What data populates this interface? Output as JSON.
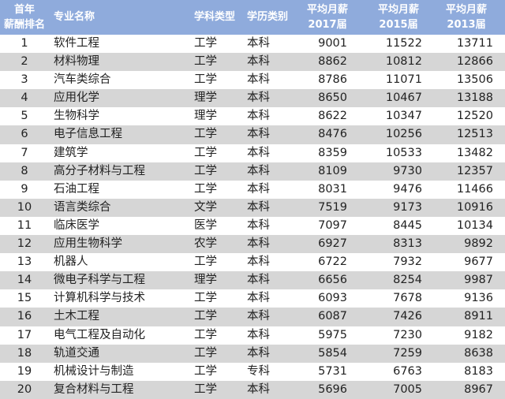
{
  "header": {
    "rank": [
      "首年",
      "薪酬排名"
    ],
    "name": "专业名称",
    "type": "学科类型",
    "edu": "学历类别",
    "y2017": [
      "平均月薪",
      "2017届"
    ],
    "y2015": [
      "平均月薪",
      "2015届"
    ],
    "y2013": [
      "平均月薪",
      "2013届"
    ]
  },
  "colors": {
    "header_bg": "#8fabdc",
    "stripe": "#d6d6d6"
  },
  "rows": [
    [
      "1",
      "软件工程",
      "工学",
      "本科",
      "9001",
      "11522",
      "13711"
    ],
    [
      "2",
      "材料物理",
      "工学",
      "本科",
      "8862",
      "10812",
      "12866"
    ],
    [
      "3",
      "汽车类综合",
      "工学",
      "本科",
      "8786",
      "11071",
      "13506"
    ],
    [
      "4",
      "应用化学",
      "理学",
      "本科",
      "8650",
      "10467",
      "13188"
    ],
    [
      "5",
      "生物科学",
      "理学",
      "本科",
      "8622",
      "10347",
      "12520"
    ],
    [
      "6",
      "电子信息工程",
      "工学",
      "本科",
      "8476",
      "10256",
      "12513"
    ],
    [
      "7",
      "建筑学",
      "工学",
      "本科",
      "8359",
      "10533",
      "13482"
    ],
    [
      "8",
      "高分子材料与工程",
      "工学",
      "本科",
      "8109",
      "9730",
      "12357"
    ],
    [
      "9",
      "石油工程",
      "工学",
      "本科",
      "8031",
      "9476",
      "11466"
    ],
    [
      "10",
      "语言类综合",
      "文学",
      "本科",
      "7519",
      "9173",
      "10916"
    ],
    [
      "11",
      "临床医学",
      "医学",
      "本科",
      "7097",
      "8445",
      "10134"
    ],
    [
      "12",
      "应用生物科学",
      "农学",
      "本科",
      "6927",
      "8313",
      "9892"
    ],
    [
      "13",
      "机器人",
      "工学",
      "本科",
      "6722",
      "7932",
      "9677"
    ],
    [
      "14",
      "微电子科学与工程",
      "理学",
      "本科",
      "6656",
      "8254",
      "9987"
    ],
    [
      "15",
      "计算机科学与技术",
      "工学",
      "本科",
      "6093",
      "7678",
      "9136"
    ],
    [
      "16",
      "土木工程",
      "工学",
      "本科",
      "6087",
      "7426",
      "8911"
    ],
    [
      "17",
      "电气工程及自动化",
      "工学",
      "本科",
      "5975",
      "7230",
      "9182"
    ],
    [
      "18",
      "轨道交通",
      "工学",
      "本科",
      "5854",
      "7259",
      "8638"
    ],
    [
      "19",
      "机械设计与制造",
      "工学",
      "专科",
      "5731",
      "6763",
      "8183"
    ],
    [
      "20",
      "复合材料与工程",
      "工学",
      "本科",
      "5696",
      "7005",
      "8967"
    ]
  ]
}
